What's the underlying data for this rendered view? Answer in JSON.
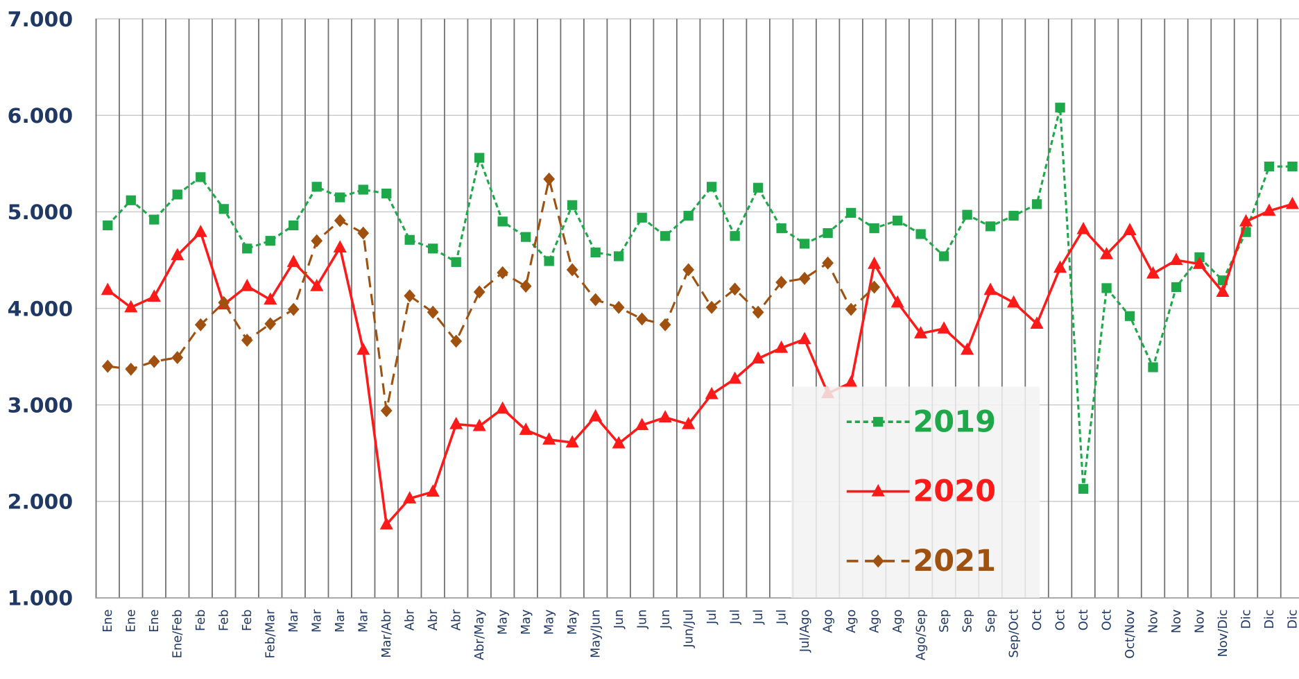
{
  "chart_data": {
    "type": "line",
    "categories": [
      "Ene",
      "Ene",
      "Ene",
      "Ene/Feb",
      "Feb",
      "Feb",
      "Feb",
      "Feb/Mar",
      "Mar",
      "Mar",
      "Mar",
      "Mar",
      "Mar/Abr",
      "Abr",
      "Abr",
      "Abr",
      "Abr/May",
      "May",
      "May",
      "May",
      "May",
      "May/Jun",
      "Jun",
      "Jun",
      "Jun",
      "Jun/Jul",
      "Jul",
      "Jul",
      "Jul",
      "Jul",
      "Jul/Ago",
      "Ago",
      "Ago",
      "Ago",
      "Ago",
      "Ago/Sep",
      "Sep",
      "Sep",
      "Sep",
      "Sep/Oct",
      "Oct",
      "Oct",
      "Oct",
      "Oct",
      "Oct/Nov",
      "Nov",
      "Nov",
      "Nov",
      "Nov/Dic",
      "Dic",
      "Dic",
      "Dic"
    ],
    "ylim": [
      1000,
      7000
    ],
    "yticks": [
      {
        "value": 1000,
        "label": "1.000"
      },
      {
        "value": 2000,
        "label": "2.000"
      },
      {
        "value": 3000,
        "label": "3.000"
      },
      {
        "value": 4000,
        "label": "4.000"
      },
      {
        "value": 5000,
        "label": "5.000"
      },
      {
        "value": 6000,
        "label": "6.000"
      },
      {
        "value": 7000,
        "label": "7.000"
      }
    ],
    "grid": true,
    "series": [
      {
        "name": "2019",
        "color": "#1ea84a",
        "marker": "square",
        "line_style": "dashed",
        "values": [
          4860,
          5120,
          4920,
          5180,
          5360,
          5030,
          4620,
          4700,
          4860,
          5260,
          5150,
          5230,
          5190,
          4710,
          4620,
          4480,
          5560,
          4900,
          4740,
          4490,
          5070,
          4580,
          4540,
          4940,
          4750,
          4960,
          5260,
          4750,
          5250,
          4830,
          4670,
          4780,
          4990,
          4830,
          4910,
          4770,
          4540,
          4970,
          4850,
          4960,
          5080,
          6080,
          2130,
          4210,
          3920,
          3390,
          4220,
          4530,
          4290,
          4790,
          5470,
          5470
        ]
      },
      {
        "name": "2020",
        "color": "#ff1a1a",
        "marker": "triangle",
        "line_style": "solid",
        "values": [
          4190,
          4010,
          4120,
          4550,
          4790,
          4040,
          4230,
          4090,
          4480,
          4230,
          4630,
          3570,
          1760,
          2030,
          2100,
          2800,
          2780,
          2960,
          2740,
          2640,
          2610,
          2880,
          2600,
          2790,
          2870,
          2800,
          3110,
          3270,
          3480,
          3590,
          3680,
          3120,
          3230,
          4460,
          4060,
          3740,
          3790,
          3570,
          4190,
          4060,
          3840,
          4420,
          4820,
          4560,
          4810,
          4360,
          4500,
          4460,
          4170,
          4900,
          5010,
          5080
        ]
      },
      {
        "name": "2021",
        "color": "#a0500f",
        "marker": "diamond",
        "line_style": "long-dash",
        "values": [
          3400,
          3370,
          3450,
          3490,
          3830,
          4060,
          3670,
          3840,
          3990,
          4700,
          4910,
          4780,
          2940,
          4130,
          3960,
          3660,
          4170,
          4370,
          4230,
          5340,
          4400,
          4090,
          4010,
          3890,
          3830,
          4400,
          4010,
          4200,
          3960,
          4270,
          4310,
          4470,
          3990,
          4220,
          null,
          null,
          null,
          null,
          null,
          null,
          null,
          null,
          null,
          null,
          null,
          null,
          null,
          null,
          null,
          null,
          null,
          null
        ]
      }
    ],
    "legend": "lower-center"
  }
}
